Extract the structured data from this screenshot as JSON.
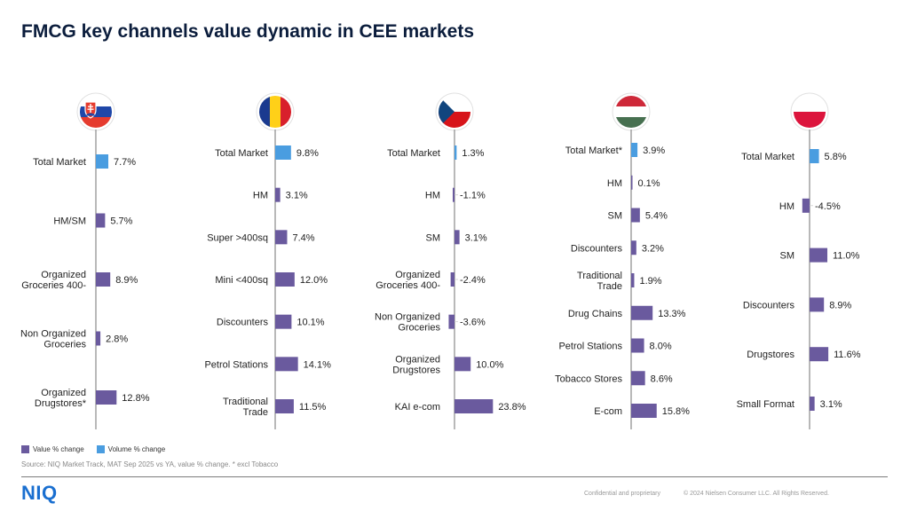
{
  "page": {
    "title": "FMCG key channels value dynamic in CEE markets",
    "legend": {
      "value_label": "Value % change",
      "volume_label": "Volume % change"
    },
    "source": "Source: NIQ Market Track, MAT Sep 2025 vs YA, value % change. * excl Tobacco",
    "logo": "NIQ",
    "confidential": "Confidential and proprietary",
    "copyright": "© 2024 Nielsen Consumer LLC. All Rights Reserved."
  },
  "colors": {
    "value": "#6a5a9e",
    "volume": "#4a9de0",
    "axis": "#8a8a8a",
    "label": "#222222"
  },
  "chart_data": [
    {
      "type": "bar",
      "flag": "slovakia-flag",
      "categories": [
        "Total Market",
        "HM/SM",
        "Organized Groceries 400-",
        "Non Organized Groceries",
        "Organized Drugstores*"
      ],
      "values": [
        7.7,
        5.7,
        8.9,
        2.8,
        12.8
      ],
      "labels": [
        "7.7%",
        "5.7%",
        "8.9%",
        "2.8%",
        "12.8%"
      ],
      "measure": [
        "volume",
        "value",
        "value",
        "value",
        "value"
      ]
    },
    {
      "type": "bar",
      "flag": "romania-flag",
      "categories": [
        "Total Market",
        "HM",
        "Super >400sq",
        "Mini <400sq",
        "Discounters",
        "Petrol Stations",
        "Traditional Trade"
      ],
      "values": [
        9.8,
        3.1,
        7.4,
        12.0,
        10.1,
        14.1,
        11.5
      ],
      "labels": [
        "9.8%",
        "3.1%",
        "7.4%",
        "12.0%",
        "10.1%",
        "14.1%",
        "11.5%"
      ],
      "measure": [
        "volume",
        "value",
        "value",
        "value",
        "value",
        "value",
        "value"
      ]
    },
    {
      "type": "bar",
      "flag": "czech-flag",
      "categories": [
        "Total Market",
        "HM",
        "SM",
        "Organized Groceries 400-",
        "Non Organized Groceries",
        "Organized Drugstores",
        "KAI e-com"
      ],
      "values": [
        1.3,
        -1.1,
        3.1,
        -2.4,
        -3.6,
        10.0,
        23.8
      ],
      "labels": [
        "1.3%",
        "-1.1%",
        "3.1%",
        "-2.4%",
        "-3.6%",
        "10.0%",
        "23.8%"
      ],
      "measure": [
        "volume",
        "value",
        "value",
        "value",
        "value",
        "value",
        "value"
      ]
    },
    {
      "type": "bar",
      "flag": "hungary-flag",
      "categories": [
        "Total Market*",
        "HM",
        "SM",
        "Discounters",
        "Traditional Trade",
        "Drug Chains",
        "Petrol Stations",
        "Tobacco Stores",
        "E-com"
      ],
      "values": [
        3.9,
        0.1,
        5.4,
        3.2,
        1.9,
        13.3,
        8.0,
        8.6,
        15.8
      ],
      "labels": [
        "3.9%",
        "0.1%",
        "5.4%",
        "3.2%",
        "1.9%",
        "13.3%",
        "8.0%",
        "8.6%",
        "15.8%"
      ],
      "measure": [
        "volume",
        "value",
        "value",
        "value",
        "value",
        "value",
        "value",
        "value",
        "value"
      ]
    },
    {
      "type": "bar",
      "flag": "poland-flag",
      "categories": [
        "Total Market",
        "HM",
        "SM",
        "Discounters",
        "Drugstores",
        "Small Format"
      ],
      "values": [
        5.8,
        -4.5,
        11.0,
        8.9,
        11.6,
        3.1
      ],
      "labels": [
        "5.8%",
        "-4.5%",
        "11.0%",
        "8.9%",
        "11.6%",
        "3.1%"
      ],
      "measure": [
        "volume",
        "value",
        "value",
        "value",
        "value",
        "value"
      ]
    }
  ]
}
